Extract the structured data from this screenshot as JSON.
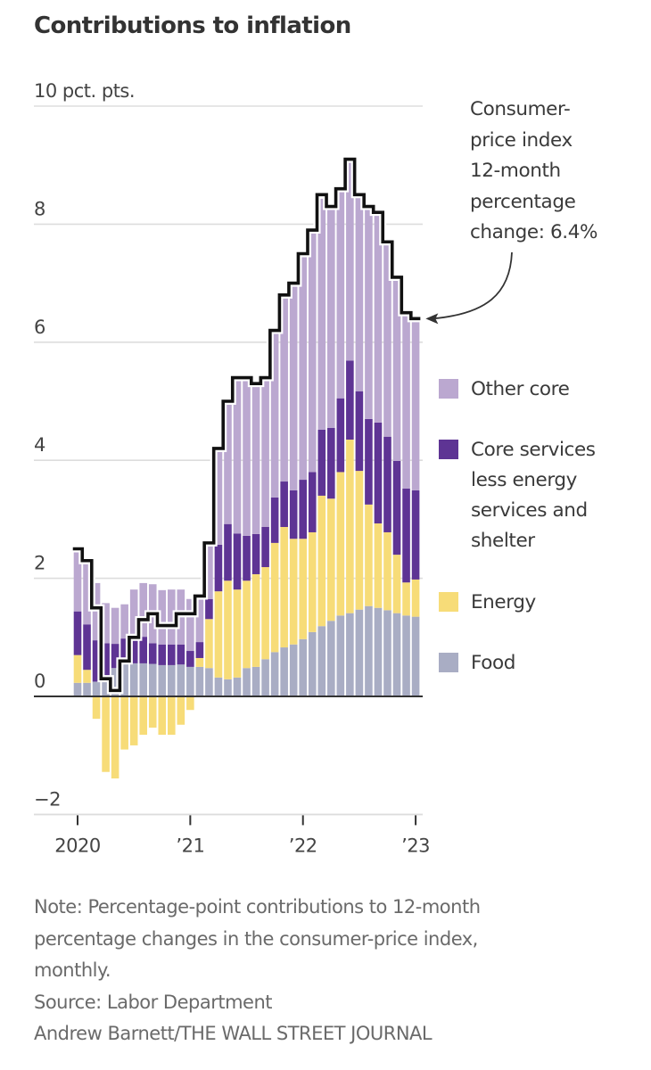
{
  "chart_data": {
    "type": "bar",
    "stacked": true,
    "title": "Contributions to inflation",
    "ylabel": "pct. pts.",
    "ylim": [
      -2,
      10
    ],
    "yticks": [
      {
        "value": 10,
        "label": "10 pct. pts."
      },
      {
        "value": 8,
        "label": "8"
      },
      {
        "value": 6,
        "label": "6"
      },
      {
        "value": 4,
        "label": "4"
      },
      {
        "value": 2,
        "label": "2"
      },
      {
        "value": 0,
        "label": "0"
      },
      {
        "value": -2,
        "label": "−2"
      }
    ],
    "xticks": [
      {
        "index": 0,
        "label": "2020"
      },
      {
        "index": 12,
        "label": "’21"
      },
      {
        "index": 24,
        "label": "’22"
      },
      {
        "index": 36,
        "label": "’23"
      }
    ],
    "grid": true,
    "legend_position": "right",
    "categories": [
      "2020-01",
      "2020-02",
      "2020-03",
      "2020-04",
      "2020-05",
      "2020-06",
      "2020-07",
      "2020-08",
      "2020-09",
      "2020-10",
      "2020-11",
      "2020-12",
      "2021-01",
      "2021-02",
      "2021-03",
      "2021-04",
      "2021-05",
      "2021-06",
      "2021-07",
      "2021-08",
      "2021-09",
      "2021-10",
      "2021-11",
      "2021-12",
      "2022-01",
      "2022-02",
      "2022-03",
      "2022-04",
      "2022-05",
      "2022-06",
      "2022-07",
      "2022-08",
      "2022-09",
      "2022-10",
      "2022-11",
      "2022-12",
      "2023-01"
    ],
    "series": [
      {
        "name": "Food",
        "color": "#a9adc4",
        "values": [
          0.23,
          0.23,
          0.25,
          0.35,
          0.48,
          0.55,
          0.56,
          0.56,
          0.55,
          0.53,
          0.53,
          0.54,
          0.5,
          0.5,
          0.48,
          0.32,
          0.29,
          0.32,
          0.48,
          0.5,
          0.63,
          0.75,
          0.83,
          0.88,
          0.97,
          1.09,
          1.19,
          1.28,
          1.37,
          1.41,
          1.47,
          1.53,
          1.5,
          1.46,
          1.41,
          1.37,
          1.35
        ]
      },
      {
        "name": "Energy",
        "color": "#f7dc78",
        "values": [
          0.47,
          0.22,
          -0.38,
          -1.28,
          -1.39,
          -0.9,
          -0.83,
          -0.65,
          -0.53,
          -0.65,
          -0.65,
          -0.48,
          -0.23,
          0.15,
          0.83,
          1.46,
          1.67,
          1.49,
          1.48,
          1.57,
          1.56,
          1.85,
          2.04,
          1.79,
          1.7,
          1.69,
          2.21,
          2.07,
          2.43,
          2.94,
          2.35,
          1.72,
          1.43,
          1.32,
          0.99,
          0.56,
          0.63
        ]
      },
      {
        "name": "Core services less energy services and shelter",
        "color": "#5e3494",
        "values": [
          0.74,
          0.77,
          0.7,
          0.55,
          0.41,
          0.43,
          0.49,
          0.45,
          0.35,
          0.35,
          0.35,
          0.34,
          0.27,
          0.27,
          0.34,
          0.79,
          0.96,
          0.95,
          0.76,
          0.68,
          0.68,
          0.77,
          0.77,
          0.82,
          1.0,
          1.02,
          1.12,
          1.2,
          1.25,
          1.34,
          1.35,
          1.45,
          1.71,
          1.62,
          1.59,
          1.59,
          1.51
        ]
      },
      {
        "name": "Other core",
        "color": "#bba8d0",
        "values": [
          1.01,
          1.02,
          0.97,
          0.68,
          0.61,
          0.58,
          0.76,
          0.91,
          1.0,
          0.92,
          0.93,
          0.93,
          0.88,
          0.73,
          0.92,
          1.58,
          2.04,
          2.6,
          2.64,
          2.51,
          2.49,
          2.79,
          3.13,
          3.47,
          3.79,
          4.06,
          3.91,
          3.7,
          3.52,
          3.38,
          3.32,
          3.63,
          3.56,
          3.3,
          3.11,
          2.98,
          2.91
        ]
      }
    ],
    "line": {
      "name": "Consumer-price index 12-month percentage change",
      "color": "#111111",
      "values": [
        2.5,
        2.3,
        1.5,
        0.3,
        0.1,
        0.6,
        1.0,
        1.3,
        1.4,
        1.2,
        1.2,
        1.4,
        1.4,
        1.7,
        2.6,
        4.2,
        5.0,
        5.4,
        5.4,
        5.3,
        5.4,
        6.2,
        6.8,
        7.0,
        7.5,
        7.9,
        8.5,
        8.3,
        8.6,
        9.1,
        8.5,
        8.3,
        8.2,
        7.7,
        7.1,
        6.5,
        6.4
      ]
    },
    "annotation": [
      "Consumer-",
      "price index",
      "12-month",
      "percentage",
      "change: 6.4%"
    ]
  },
  "legend": [
    {
      "label": [
        "Other core"
      ],
      "color": "#bba8d0"
    },
    {
      "label": [
        "Core services",
        "less energy",
        "services and",
        "shelter"
      ],
      "color": "#5e3494"
    },
    {
      "label": [
        "Energy"
      ],
      "color": "#f7dc78"
    },
    {
      "label": [
        "Food"
      ],
      "color": "#a9adc4"
    }
  ],
  "footer": {
    "note": [
      "Note: Percentage-point contributions to 12-month",
      "percentage changes in the consumer-price index,",
      "monthly."
    ],
    "source": "Source: Labor Department",
    "credit": "Andrew Barnett/THE WALL STREET JOURNAL"
  }
}
